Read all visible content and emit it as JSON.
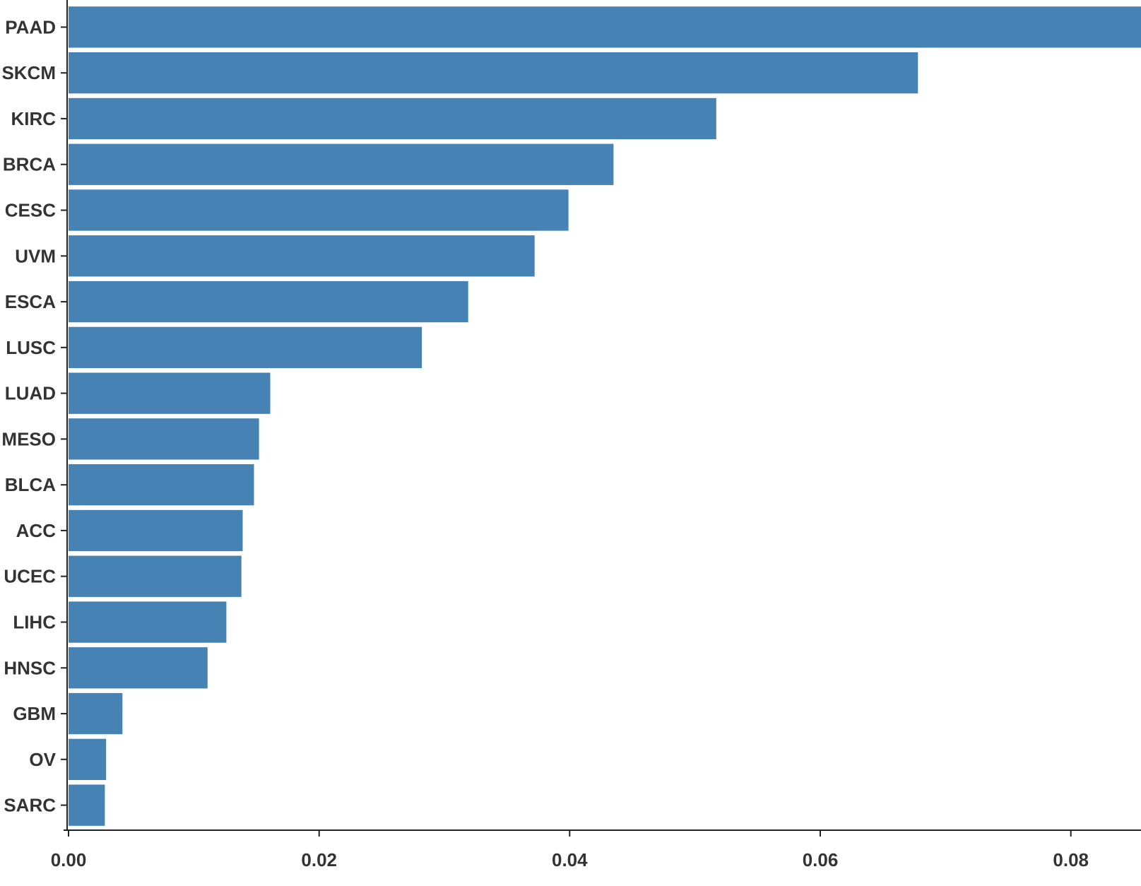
{
  "chart_data": {
    "type": "bar",
    "orientation": "horizontal",
    "categories": [
      "PAAD",
      "SKCM",
      "KIRC",
      "BRCA",
      "CESC",
      "UVM",
      "ESCA",
      "LUSC",
      "LUAD",
      "MESO",
      "BLCA",
      "ACC",
      "UCEC",
      "LIHC",
      "HNSC",
      "GBM",
      "OV",
      "SARC"
    ],
    "values": [
      0.0856,
      0.0678,
      0.0517,
      0.0435,
      0.0399,
      0.0372,
      0.0319,
      0.0282,
      0.0161,
      0.0152,
      0.0148,
      0.0139,
      0.0138,
      0.0126,
      0.0111,
      0.0043,
      0.003,
      0.0029
    ],
    "xticks": [
      "0.00",
      "0.02",
      "0.04",
      "0.06",
      "0.08"
    ],
    "xtick_values": [
      0,
      0.02,
      0.04,
      0.06,
      0.08
    ],
    "xlim": [
      0,
      0.0856
    ],
    "title": "",
    "xlabel": "",
    "ylabel": "",
    "grid": false,
    "bar_color": "#4682b4"
  }
}
